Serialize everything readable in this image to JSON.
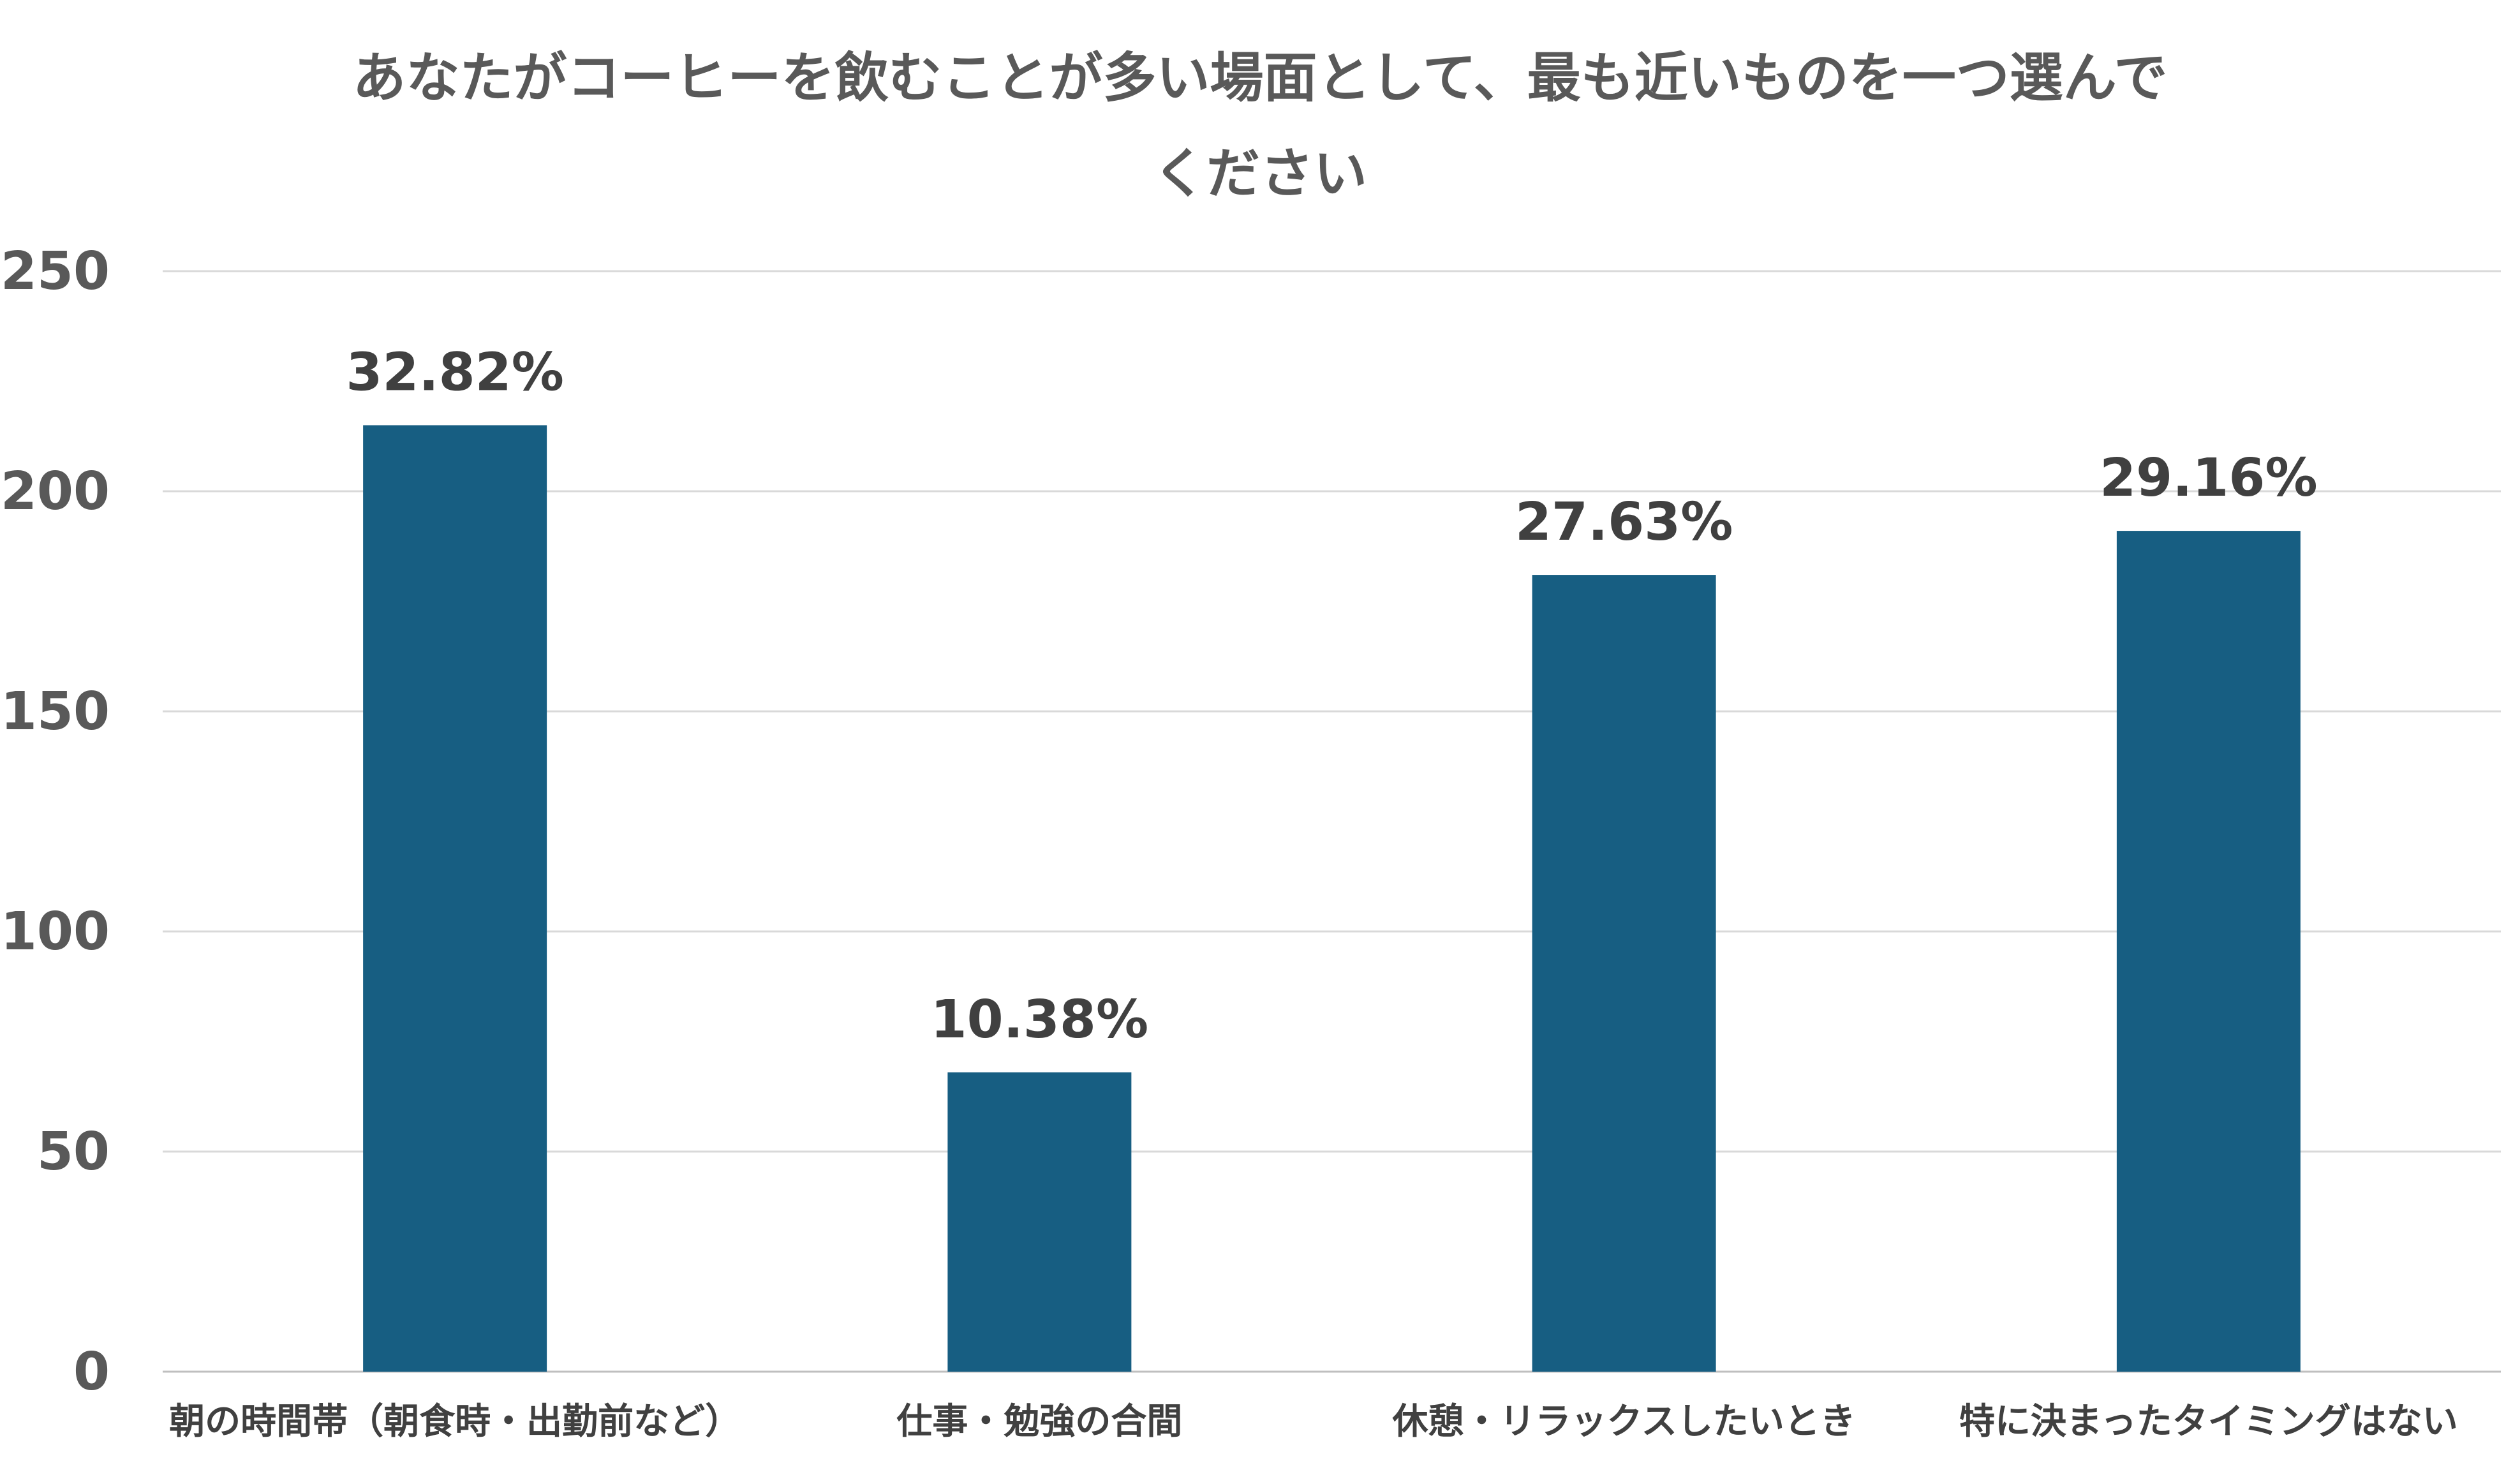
{
  "chart_data": {
    "type": "bar",
    "title": "あなたがコーヒーを飲むことが多い場面として、最も近いものを一つ選んでください",
    "title_lines": [
      "あなたがコーヒーを飲むことが多い場面として、最も近いものを一つ選んで",
      "ください"
    ],
    "categories": [
      "朝の時間帯（朝食時・出勤前など）",
      "仕事・勉強の合間",
      "休憩・リラックスしたいとき",
      "特に決まったタイミングはない"
    ],
    "values": [
      215,
      68,
      181,
      191
    ],
    "data_labels": [
      "32.82%",
      "10.38%",
      "27.63%",
      "29.16%"
    ],
    "ylim": [
      0,
      250
    ],
    "yticks": [
      0,
      50,
      100,
      150,
      200,
      250
    ],
    "xlabel": "",
    "ylabel": "",
    "grid": true,
    "legend": "none",
    "bar_color": "#175E82"
  }
}
